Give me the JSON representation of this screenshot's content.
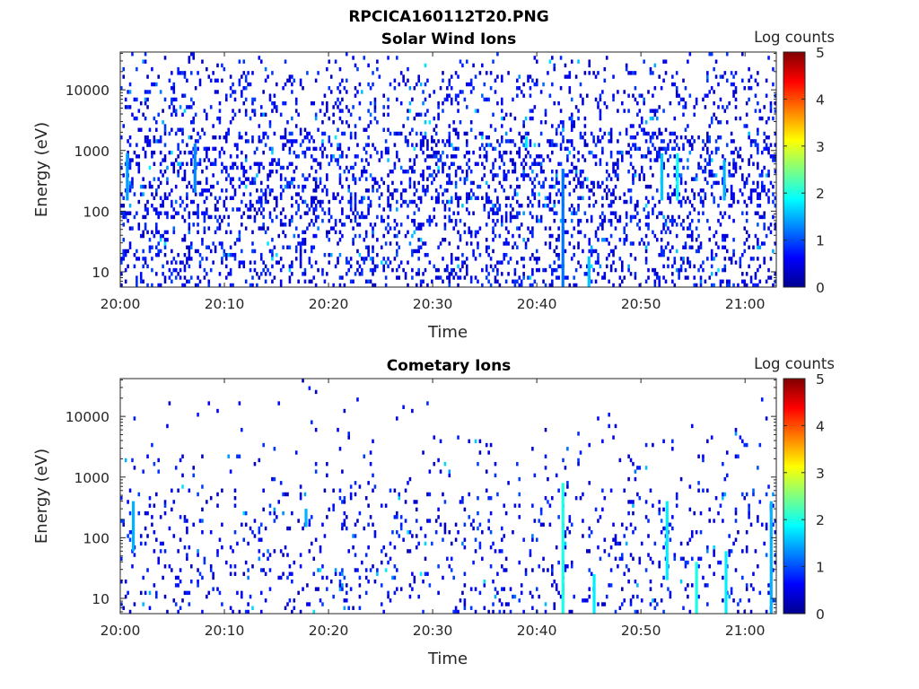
{
  "figure": {
    "title": "RPCICA160112T20.PNG",
    "colormap": "jet",
    "colors": {
      "background": "#ffffff",
      "axes": "#262626",
      "title": "#000000"
    }
  },
  "chart_data": [
    {
      "type": "heatmap",
      "title": "Solar Wind Ions",
      "xlabel": "Time",
      "ylabel": "Energy (eV)",
      "x_range_minutes_after_2000": [
        0,
        63
      ],
      "xticks": [
        "20:00",
        "20:10",
        "20:20",
        "20:30",
        "20:40",
        "20:50",
        "21:00"
      ],
      "yscale": "log",
      "ylim": [
        5.6,
        42000
      ],
      "yticks": [
        "10",
        "100",
        "1000",
        "10000"
      ],
      "colorbar": {
        "label": "Log counts",
        "range": [
          0,
          5
        ],
        "ticks": [
          "0",
          "1",
          "2",
          "3",
          "4",
          "5"
        ]
      },
      "description_density": "dense",
      "features": [
        {
          "time": "20:00:40",
          "energy_range": [
            150,
            900
          ],
          "log_counts": 1.4
        },
        {
          "time": "20:07:10",
          "energy_range": [
            200,
            1300
          ],
          "log_counts": 1.3
        },
        {
          "time": "20:39:00",
          "energy_range": [
            1100,
            1700
          ],
          "log_counts": 1.8
        },
        {
          "time": "20:42:30",
          "energy_range": [
            5.6,
            500
          ],
          "log_counts": 1.2
        },
        {
          "time": "20:45:00",
          "energy_range": [
            5.6,
            18
          ],
          "log_counts": 1.6
        },
        {
          "time": "20:52:00",
          "energy_range": [
            150,
            900
          ],
          "log_counts": 1.6
        },
        {
          "time": "20:53:30",
          "energy_range": [
            150,
            900
          ],
          "log_counts": 1.9
        },
        {
          "time": "20:58:00",
          "energy_range": [
            150,
            700
          ],
          "log_counts": 1.5
        }
      ]
    },
    {
      "type": "heatmap",
      "title": "Cometary Ions",
      "xlabel": "Time",
      "ylabel": "Energy (eV)",
      "x_range_minutes_after_2000": [
        0,
        63
      ],
      "xticks": [
        "20:00",
        "20:10",
        "20:20",
        "20:30",
        "20:40",
        "20:50",
        "21:00"
      ],
      "yscale": "log",
      "ylim": [
        5.6,
        42000
      ],
      "yticks": [
        "10",
        "100",
        "1000",
        "10000"
      ],
      "colorbar": {
        "label": "Log counts",
        "range": [
          0,
          5
        ],
        "ticks": [
          "0",
          "1",
          "2",
          "3",
          "4",
          "5"
        ]
      },
      "description_density": "sparse",
      "features": [
        {
          "time": "20:01:15",
          "energy_range": [
            60,
            400
          ],
          "log_counts": 1.5
        },
        {
          "time": "20:17:50",
          "energy_range": [
            150,
            300
          ],
          "log_counts": 1.5
        },
        {
          "time": "20:42:30",
          "energy_range": [
            5.6,
            800
          ],
          "log_counts": 2.0
        },
        {
          "time": "20:45:30",
          "energy_range": [
            5.6,
            25
          ],
          "log_counts": 1.8
        },
        {
          "time": "20:52:30",
          "energy_range": [
            20,
            400
          ],
          "log_counts": 1.8
        },
        {
          "time": "20:55:20",
          "energy_range": [
            5.6,
            40
          ],
          "log_counts": 2.0
        },
        {
          "time": "20:58:10",
          "energy_range": [
            5.6,
            60
          ],
          "log_counts": 1.8
        },
        {
          "time": "21:02:30",
          "energy_range": [
            5.6,
            400
          ],
          "log_counts": 1.5
        }
      ]
    }
  ]
}
